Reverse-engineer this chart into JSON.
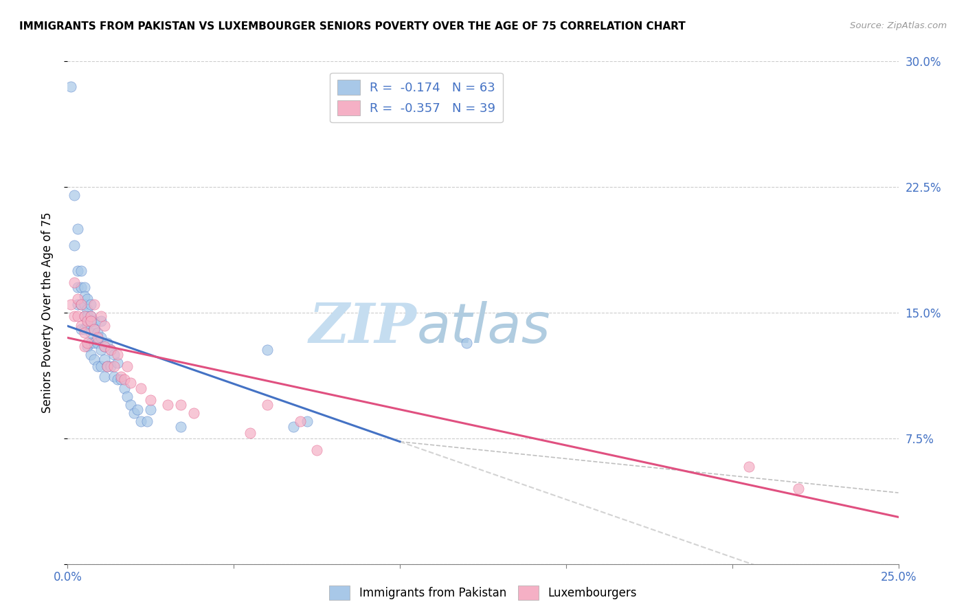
{
  "title": "IMMIGRANTS FROM PAKISTAN VS LUXEMBOURGER SENIORS POVERTY OVER THE AGE OF 75 CORRELATION CHART",
  "source": "Source: ZipAtlas.com",
  "ylabel_left": "Seniors Poverty Over the Age of 75",
  "x_min": 0.0,
  "x_max": 0.25,
  "y_min": 0.0,
  "y_max": 0.3,
  "right_y_ticks": [
    0.0,
    0.075,
    0.15,
    0.225,
    0.3
  ],
  "right_y_labels": [
    "",
    "7.5%",
    "15.0%",
    "22.5%",
    "30.0%"
  ],
  "blue_color": "#a8c8e8",
  "pink_color": "#f5b0c5",
  "blue_line_color": "#4472c4",
  "pink_line_color": "#e05080",
  "blue_R": -0.174,
  "blue_N": 63,
  "pink_R": -0.357,
  "pink_N": 39,
  "legend_label_blue": "Immigrants from Pakistan",
  "legend_label_pink": "Luxembourgers",
  "blue_scatter_x": [
    0.001,
    0.002,
    0.002,
    0.003,
    0.003,
    0.003,
    0.003,
    0.004,
    0.004,
    0.004,
    0.004,
    0.005,
    0.005,
    0.005,
    0.005,
    0.005,
    0.006,
    0.006,
    0.006,
    0.006,
    0.006,
    0.007,
    0.007,
    0.007,
    0.007,
    0.007,
    0.007,
    0.008,
    0.008,
    0.008,
    0.008,
    0.009,
    0.009,
    0.009,
    0.01,
    0.01,
    0.01,
    0.01,
    0.011,
    0.011,
    0.011,
    0.012,
    0.012,
    0.013,
    0.013,
    0.014,
    0.014,
    0.015,
    0.015,
    0.016,
    0.017,
    0.018,
    0.019,
    0.02,
    0.021,
    0.022,
    0.024,
    0.025,
    0.034,
    0.06,
    0.068,
    0.072,
    0.12
  ],
  "blue_scatter_y": [
    0.285,
    0.22,
    0.19,
    0.2,
    0.175,
    0.165,
    0.155,
    0.175,
    0.165,
    0.155,
    0.14,
    0.165,
    0.16,
    0.155,
    0.148,
    0.14,
    0.158,
    0.152,
    0.148,
    0.143,
    0.13,
    0.155,
    0.148,
    0.145,
    0.138,
    0.132,
    0.125,
    0.145,
    0.14,
    0.132,
    0.122,
    0.138,
    0.132,
    0.118,
    0.145,
    0.135,
    0.128,
    0.118,
    0.13,
    0.122,
    0.112,
    0.132,
    0.118,
    0.128,
    0.118,
    0.125,
    0.112,
    0.12,
    0.11,
    0.11,
    0.105,
    0.1,
    0.095,
    0.09,
    0.092,
    0.085,
    0.085,
    0.092,
    0.082,
    0.128,
    0.082,
    0.085,
    0.132
  ],
  "pink_scatter_x": [
    0.001,
    0.002,
    0.002,
    0.003,
    0.003,
    0.004,
    0.004,
    0.005,
    0.005,
    0.005,
    0.006,
    0.006,
    0.007,
    0.007,
    0.008,
    0.008,
    0.009,
    0.01,
    0.011,
    0.011,
    0.012,
    0.013,
    0.014,
    0.015,
    0.016,
    0.017,
    0.018,
    0.019,
    0.022,
    0.025,
    0.03,
    0.034,
    0.038,
    0.055,
    0.06,
    0.07,
    0.075,
    0.205,
    0.22
  ],
  "pink_scatter_y": [
    0.155,
    0.168,
    0.148,
    0.158,
    0.148,
    0.155,
    0.142,
    0.148,
    0.138,
    0.13,
    0.145,
    0.132,
    0.148,
    0.145,
    0.155,
    0.14,
    0.135,
    0.148,
    0.142,
    0.13,
    0.118,
    0.128,
    0.118,
    0.125,
    0.112,
    0.11,
    0.118,
    0.108,
    0.105,
    0.098,
    0.095,
    0.095,
    0.09,
    0.078,
    0.095,
    0.085,
    0.068,
    0.058,
    0.045
  ],
  "blue_line_x_start": 0.0,
  "blue_line_x_end": 0.1,
  "blue_line_y_start": 0.142,
  "blue_line_y_end": 0.073,
  "pink_line_x_start": 0.0,
  "pink_line_x_end": 0.25,
  "pink_line_y_start": 0.135,
  "pink_line_y_end": 0.028
}
